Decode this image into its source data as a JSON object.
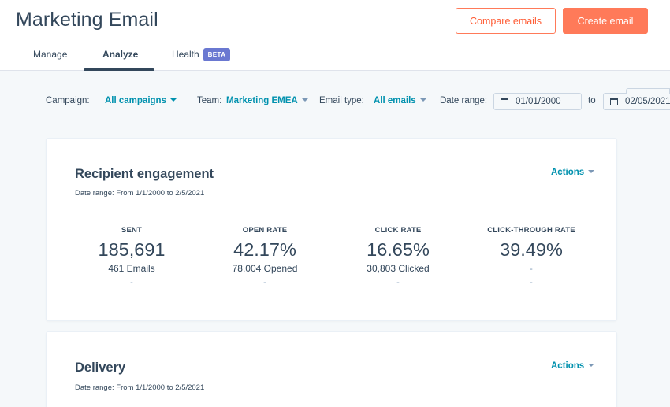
{
  "header": {
    "title": "Marketing Email",
    "compare_label": "Compare emails",
    "create_label": "Create email"
  },
  "tabs": [
    {
      "label": "Manage"
    },
    {
      "label": "Analyze",
      "active": true
    },
    {
      "label": "Health",
      "badge": "BETA"
    }
  ],
  "filters": {
    "campaign_label": "Campaign:",
    "campaign_value": "All campaigns",
    "team_label": "Team:",
    "team_value": "Marketing EMEA",
    "email_type_label": "Email type:",
    "email_type_value": "All emails",
    "date_range_label": "Date range:",
    "date_from": "01/01/2000",
    "date_to_label": "to",
    "date_to": "02/05/2021"
  },
  "engagement_card": {
    "title": "Recipient engagement",
    "date_range": "Date range: From 1/1/2000 to 2/5/2021",
    "actions_label": "Actions",
    "stats": [
      {
        "label": "SENT",
        "value": "185,691",
        "detail": "461 Emails",
        "change": "-"
      },
      {
        "label": "OPEN RATE",
        "value": "42.17%",
        "detail": "78,004 Opened",
        "change": "-"
      },
      {
        "label": "CLICK RATE",
        "value": "16.65%",
        "detail": "30,803 Clicked",
        "change": "-"
      },
      {
        "label": "CLICK-THROUGH RATE",
        "value": "39.49%",
        "detail": "-",
        "change": "-"
      }
    ]
  },
  "delivery_card": {
    "title": "Delivery",
    "date_range": "Date range: From 1/1/2000 to 2/5/2021",
    "actions_label": "Actions"
  },
  "colors": {
    "accent": "#ff7a59",
    "link": "#0091ae",
    "text": "#33475b",
    "badge": "#6a78d1",
    "background": "#f5f8fa"
  }
}
